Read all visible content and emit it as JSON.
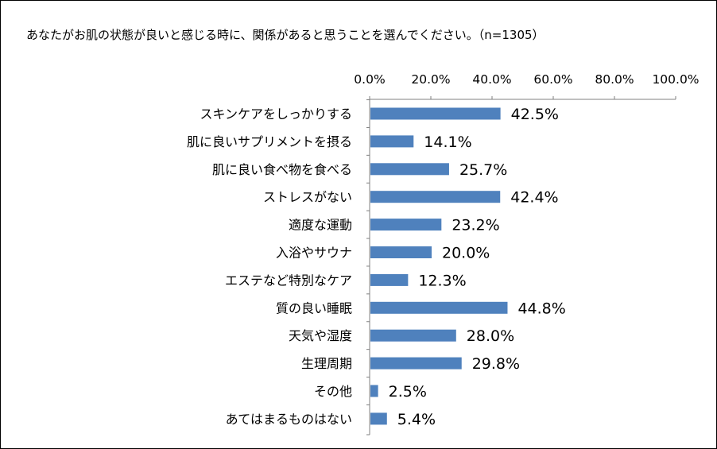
{
  "chart_data": {
    "type": "bar",
    "orientation": "horizontal",
    "title": "あなたがお肌の状態が良いと感じる時に、関係があると思うことを選んでください。（n=1305）",
    "categories": [
      "スキンケアをしっかりする",
      "肌に良いサプリメントを摂る",
      "肌に良い食べ物を食べる",
      "ストレスがない",
      "適度な運動",
      "入浴やサウナ",
      "エステなど特別なケア",
      "質の良い睡眠",
      "天気や湿度",
      "生理周期",
      "その他",
      "あてはまるものはない"
    ],
    "values": [
      42.5,
      14.1,
      25.7,
      42.4,
      23.2,
      20.0,
      12.3,
      44.8,
      28.0,
      29.8,
      2.5,
      5.4
    ],
    "value_labels": [
      "42.5%",
      "14.1%",
      "25.7%",
      "42.4%",
      "23.2%",
      "20.0%",
      "12.3%",
      "44.8%",
      "28.0%",
      "29.8%",
      "2.5%",
      "5.4%"
    ],
    "x_tick_labels": [
      "0.0%",
      "20.0%",
      "40.0%",
      "60.0%",
      "80.0%",
      "100.0%"
    ],
    "x_ticks": [
      0,
      20,
      40,
      60,
      80,
      100
    ],
    "xlim": [
      0,
      100
    ],
    "xaxis_position": "top",
    "xlabel": "",
    "ylabel": "",
    "grid": false,
    "legend": "none",
    "bar_color": "#4F81BD",
    "axis_color": "#808080"
  }
}
